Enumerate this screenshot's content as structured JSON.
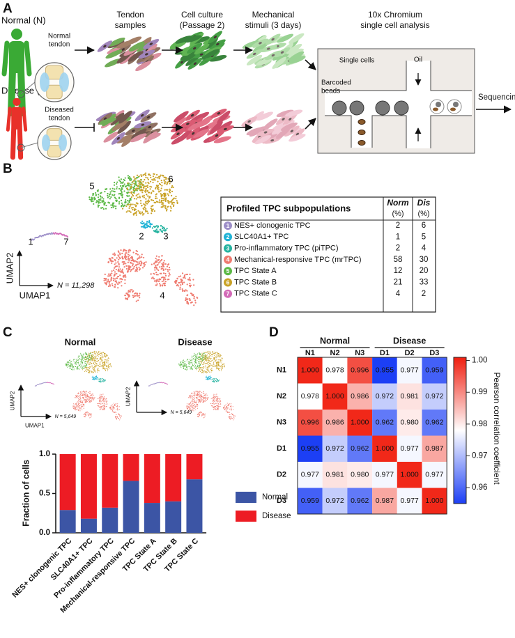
{
  "panel_a": {
    "label": "A",
    "normal_title": "Normal (N)",
    "normal_inset": [
      "Normal",
      "tendon"
    ],
    "disease_title": "Disease (D)",
    "disease_inset": [
      "Diseased",
      "tendon"
    ],
    "steps": [
      [
        "Tendon",
        "samples"
      ],
      [
        "Cell culture",
        "(Passage 2)"
      ],
      [
        "Mechanical",
        "stimuli (3 days)"
      ],
      [
        "10x Chromium",
        "single cell analysis"
      ]
    ],
    "single_cells": "Single cells",
    "oil": "Oil",
    "beads": [
      "Barcoded",
      "beads"
    ],
    "sequencing": "Sequencing"
  },
  "panel_b": {
    "label": "B",
    "umap": {
      "x_label": "UMAP1",
      "y_label": "UMAP2",
      "n_label": "N = 11,298"
    },
    "table": {
      "title": "Profiled TPC subpopulations",
      "col_norm": [
        "Norm",
        "(%)"
      ],
      "col_dis": [
        "Dis",
        "(%)"
      ],
      "rows": [
        {
          "id": "1",
          "name": "NES+ clonogenic TPC",
          "color": "#9d8fc8",
          "norm": 2,
          "dis": 6
        },
        {
          "id": "2",
          "name": "SLC40A1+ TPC",
          "color": "#1fb3d6",
          "norm": 1,
          "dis": 5
        },
        {
          "id": "3",
          "name": "Pro-inflammatory TPC (piTPC)",
          "color": "#26b3a0",
          "norm": 2,
          "dis": 4
        },
        {
          "id": "4",
          "name": "Mechanical-responsive TPC (mrTPC)",
          "color": "#ef7b70",
          "norm": 58,
          "dis": 30
        },
        {
          "id": "5",
          "name": "TPC State A",
          "color": "#5cb946",
          "norm": 12,
          "dis": 20
        },
        {
          "id": "6",
          "name": "TPC State B",
          "color": "#c9a227",
          "norm": 21,
          "dis": 33
        },
        {
          "id": "7",
          "name": "TPC State C",
          "color": "#d36ab7",
          "norm": 4,
          "dis": 2
        }
      ]
    }
  },
  "panel_c": {
    "label": "C",
    "normal_title": "Normal",
    "disease_title": "Disease",
    "umap": {
      "x_label": "UMAP1",
      "y_label": "UMAP2",
      "n_label": "N = 5,649"
    }
  },
  "panel_d": {
    "label": "D"
  },
  "chart_data": [
    {
      "type": "bar",
      "stacked": true,
      "ylabel": "Fraction of cells",
      "categories": [
        "NES+ clonogenic TPC",
        "SLC40A1+ TPC",
        "Pro-inflammatory TPC",
        "Mechanical-responsive TPC",
        "TPC State A",
        "TPC State B",
        "TPC State C"
      ],
      "series": [
        {
          "name": "Normal",
          "color": "#3c55a5",
          "values": [
            0.29,
            0.18,
            0.32,
            0.66,
            0.38,
            0.4,
            0.68
          ]
        },
        {
          "name": "Disease",
          "color": "#ed1c24",
          "values": [
            0.71,
            0.82,
            0.68,
            0.34,
            0.62,
            0.6,
            0.32
          ]
        }
      ],
      "ylim": [
        0,
        1
      ],
      "yticks": [
        {
          "value": 0,
          "label": "0.0"
        },
        {
          "value": 0.5,
          "label": "0.5"
        },
        {
          "value": 1,
          "label": "1.0"
        }
      ],
      "legend": "right"
    },
    {
      "type": "heatmap",
      "groups": [
        "Normal",
        "Disease"
      ],
      "x": [
        "N1",
        "N2",
        "N3",
        "D1",
        "D2",
        "D3"
      ],
      "y": [
        "N1",
        "N2",
        "N3",
        "D1",
        "D2",
        "D3"
      ],
      "values": [
        [
          1.0,
          0.978,
          0.996,
          0.955,
          0.977,
          0.959
        ],
        [
          0.978,
          1.0,
          0.986,
          0.972,
          0.981,
          0.972
        ],
        [
          0.996,
          0.986,
          1.0,
          0.962,
          0.98,
          0.962
        ],
        [
          0.955,
          0.972,
          0.962,
          1.0,
          0.977,
          0.987
        ],
        [
          0.977,
          0.981,
          0.98,
          0.977,
          1.0,
          0.977
        ],
        [
          0.959,
          0.972,
          0.962,
          0.987,
          0.977,
          1.0
        ]
      ],
      "value_labels": [
        [
          "1.000",
          "0.978",
          "0.996",
          "0.955",
          "0.977",
          "0.959"
        ],
        [
          "0.978",
          "1.000",
          "0.986",
          "0.972",
          "0.981",
          "0.972"
        ],
        [
          "0.996",
          "0.986",
          "1.000",
          "0.962",
          "0.980",
          "0.962"
        ],
        [
          "0.955",
          "0.972",
          "0.962",
          "1.000",
          "0.977",
          "0.987"
        ],
        [
          "0.977",
          "0.981",
          "0.980",
          "0.977",
          "1.000",
          "0.977"
        ],
        [
          "0.959",
          "0.972",
          "0.962",
          "0.987",
          "0.977",
          "1.000"
        ]
      ],
      "colors": [
        "#1c3ff5",
        "#ffffff",
        "#f01e0f"
      ],
      "zlim": [
        0.955,
        1.001
      ],
      "zticks": [
        0.96,
        0.97,
        0.98,
        0.99,
        {
          "value": 1,
          "label": "1.00"
        }
      ],
      "colorbar_label": "Pearson correlation coefficient"
    }
  ]
}
